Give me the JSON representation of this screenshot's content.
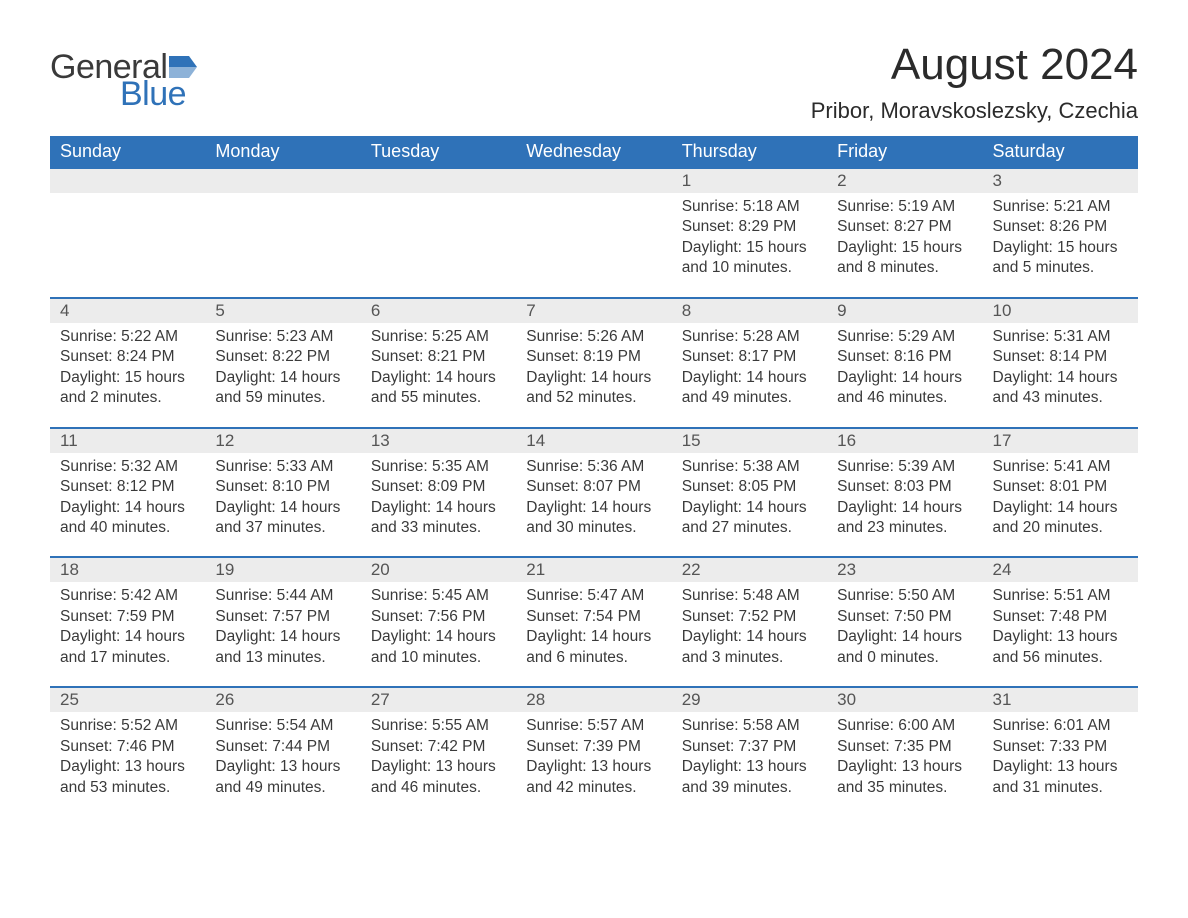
{
  "brand": {
    "text1": "General",
    "text2": "Blue",
    "icon_color": "#2f72b8",
    "text1_color": "#3a3a3a",
    "text2_color": "#2f72b8"
  },
  "title": "August 2024",
  "location": "Pribor, Moravskoslezsky, Czechia",
  "colors": {
    "header_bg": "#2f72b8",
    "header_text": "#ffffff",
    "dayrow_bg": "#ececec",
    "dayrow_border": "#2f72b8",
    "body_text": "#3a3a3a",
    "page_bg": "#ffffff"
  },
  "typography": {
    "title_fontsize": 44,
    "location_fontsize": 22,
    "header_fontsize": 18,
    "daynum_fontsize": 17,
    "detail_fontsize": 15.5,
    "font_family": "Arial"
  },
  "type": "calendar-table",
  "columns": [
    "Sunday",
    "Monday",
    "Tuesday",
    "Wednesday",
    "Thursday",
    "Friday",
    "Saturday"
  ],
  "weeks": [
    {
      "daynums": [
        "",
        "",
        "",
        "",
        "1",
        "2",
        "3"
      ],
      "details": [
        "",
        "",
        "",
        "",
        "Sunrise: 5:18 AM\nSunset: 8:29 PM\nDaylight: 15 hours and 10 minutes.",
        "Sunrise: 5:19 AM\nSunset: 8:27 PM\nDaylight: 15 hours and 8 minutes.",
        "Sunrise: 5:21 AM\nSunset: 8:26 PM\nDaylight: 15 hours and 5 minutes."
      ]
    },
    {
      "daynums": [
        "4",
        "5",
        "6",
        "7",
        "8",
        "9",
        "10"
      ],
      "details": [
        "Sunrise: 5:22 AM\nSunset: 8:24 PM\nDaylight: 15 hours and 2 minutes.",
        "Sunrise: 5:23 AM\nSunset: 8:22 PM\nDaylight: 14 hours and 59 minutes.",
        "Sunrise: 5:25 AM\nSunset: 8:21 PM\nDaylight: 14 hours and 55 minutes.",
        "Sunrise: 5:26 AM\nSunset: 8:19 PM\nDaylight: 14 hours and 52 minutes.",
        "Sunrise: 5:28 AM\nSunset: 8:17 PM\nDaylight: 14 hours and 49 minutes.",
        "Sunrise: 5:29 AM\nSunset: 8:16 PM\nDaylight: 14 hours and 46 minutes.",
        "Sunrise: 5:31 AM\nSunset: 8:14 PM\nDaylight: 14 hours and 43 minutes."
      ]
    },
    {
      "daynums": [
        "11",
        "12",
        "13",
        "14",
        "15",
        "16",
        "17"
      ],
      "details": [
        "Sunrise: 5:32 AM\nSunset: 8:12 PM\nDaylight: 14 hours and 40 minutes.",
        "Sunrise: 5:33 AM\nSunset: 8:10 PM\nDaylight: 14 hours and 37 minutes.",
        "Sunrise: 5:35 AM\nSunset: 8:09 PM\nDaylight: 14 hours and 33 minutes.",
        "Sunrise: 5:36 AM\nSunset: 8:07 PM\nDaylight: 14 hours and 30 minutes.",
        "Sunrise: 5:38 AM\nSunset: 8:05 PM\nDaylight: 14 hours and 27 minutes.",
        "Sunrise: 5:39 AM\nSunset: 8:03 PM\nDaylight: 14 hours and 23 minutes.",
        "Sunrise: 5:41 AM\nSunset: 8:01 PM\nDaylight: 14 hours and 20 minutes."
      ]
    },
    {
      "daynums": [
        "18",
        "19",
        "20",
        "21",
        "22",
        "23",
        "24"
      ],
      "details": [
        "Sunrise: 5:42 AM\nSunset: 7:59 PM\nDaylight: 14 hours and 17 minutes.",
        "Sunrise: 5:44 AM\nSunset: 7:57 PM\nDaylight: 14 hours and 13 minutes.",
        "Sunrise: 5:45 AM\nSunset: 7:56 PM\nDaylight: 14 hours and 10 minutes.",
        "Sunrise: 5:47 AM\nSunset: 7:54 PM\nDaylight: 14 hours and 6 minutes.",
        "Sunrise: 5:48 AM\nSunset: 7:52 PM\nDaylight: 14 hours and 3 minutes.",
        "Sunrise: 5:50 AM\nSunset: 7:50 PM\nDaylight: 14 hours and 0 minutes.",
        "Sunrise: 5:51 AM\nSunset: 7:48 PM\nDaylight: 13 hours and 56 minutes."
      ]
    },
    {
      "daynums": [
        "25",
        "26",
        "27",
        "28",
        "29",
        "30",
        "31"
      ],
      "details": [
        "Sunrise: 5:52 AM\nSunset: 7:46 PM\nDaylight: 13 hours and 53 minutes.",
        "Sunrise: 5:54 AM\nSunset: 7:44 PM\nDaylight: 13 hours and 49 minutes.",
        "Sunrise: 5:55 AM\nSunset: 7:42 PM\nDaylight: 13 hours and 46 minutes.",
        "Sunrise: 5:57 AM\nSunset: 7:39 PM\nDaylight: 13 hours and 42 minutes.",
        "Sunrise: 5:58 AM\nSunset: 7:37 PM\nDaylight: 13 hours and 39 minutes.",
        "Sunrise: 6:00 AM\nSunset: 7:35 PM\nDaylight: 13 hours and 35 minutes.",
        "Sunrise: 6:01 AM\nSunset: 7:33 PM\nDaylight: 13 hours and 31 minutes."
      ]
    }
  ]
}
